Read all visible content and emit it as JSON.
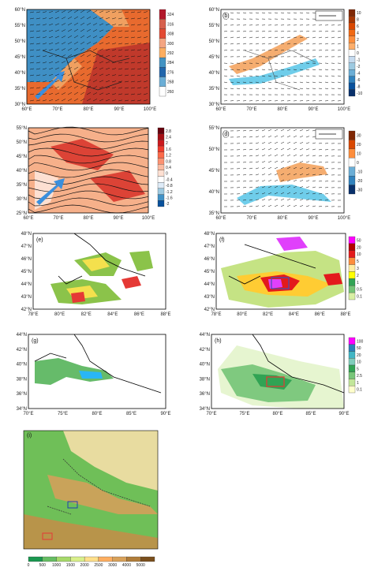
{
  "panels": {
    "a": {
      "label": "",
      "lat_ticks": [
        "60°N",
        "55°N",
        "50°N",
        "45°N",
        "40°N",
        "35°N",
        "30°N"
      ],
      "lon_ticks": [
        "60°E",
        "70°E",
        "80°E",
        "90°E",
        "100°E"
      ],
      "colorbar": [
        "324",
        "316",
        "308",
        "300",
        "292",
        "284",
        "276",
        "268",
        "260"
      ],
      "colorbar_colors": [
        "#b2182b",
        "#d6604d",
        "#e34a33",
        "#f4a582",
        "#fdae61",
        "#4393c3",
        "#2166ac",
        "#6baed6",
        "#ffffff"
      ]
    },
    "b": {
      "label": "(b)",
      "lat_ticks": [
        "60°N",
        "55°N",
        "50°N",
        "45°N",
        "40°N",
        "35°N",
        "30°N"
      ],
      "lon_ticks": [
        "60°E",
        "70°E",
        "80°E",
        "90°E",
        "100°E"
      ],
      "colorbar": [
        "10",
        "8",
        "6",
        "4",
        "2",
        "1",
        "0",
        "-1",
        "-2",
        "-4",
        "-6",
        "-8",
        "-10"
      ],
      "colorbar_colors": [
        "#7f2704",
        "#a63603",
        "#d94801",
        "#f16913",
        "#fd8d3c",
        "#fdae6b",
        "#ffffff",
        "#c6dbef",
        "#9ecae1",
        "#6baed6",
        "#3182bd",
        "#08519c",
        "#08306b"
      ]
    },
    "c": {
      "label": "",
      "lat_ticks": [
        "55°N",
        "50°N",
        "45°N",
        "40°N",
        "35°N",
        "30°N",
        "25°N"
      ],
      "lon_ticks": [
        "60°E",
        "70°E",
        "80°E",
        "90°E",
        "100°E"
      ],
      "colorbar": [
        "2.8",
        "2.4",
        "2",
        "1.6",
        "1.2",
        "0.8",
        "0.4",
        "0",
        "-0.4",
        "-0.8",
        "-1.2",
        "-1.6",
        "-2"
      ],
      "colorbar_colors": [
        "#67000d",
        "#a50f15",
        "#cb181d",
        "#ef3b2c",
        "#fb6a4a",
        "#fc9272",
        "#fcbba1",
        "#fee0d2",
        "#ffffff",
        "#deebf7",
        "#9ecae1",
        "#4292c6",
        "#08519c"
      ]
    },
    "d": {
      "label": "(d)",
      "lat_ticks": [
        "55°N",
        "50°N",
        "45°N",
        "40°N",
        "35°N"
      ],
      "lon_ticks": [
        "60°E",
        "70°E",
        "80°E",
        "90°E",
        "100°E"
      ],
      "colorbar": [
        "30",
        "20",
        "10",
        "0",
        "-10",
        "-20",
        "-30"
      ],
      "colorbar_colors": [
        "#7f2704",
        "#d94801",
        "#fd8d3c",
        "#ffffff",
        "#6baed6",
        "#3182bd",
        "#08306b"
      ]
    },
    "e": {
      "label": "(e)",
      "lat_ticks": [
        "48°N",
        "47°N",
        "46°N",
        "45°N",
        "44°N",
        "43°N",
        "42°N"
      ],
      "lon_ticks": [
        "78°E",
        "80°E",
        "82°E",
        "84°E",
        "86°E",
        "88°E"
      ]
    },
    "f": {
      "label": "(f)",
      "lat_ticks": [
        "48°N",
        "47°N",
        "46°N",
        "45°N",
        "44°N",
        "43°N",
        "42°N"
      ],
      "lon_ticks": [
        "78°E",
        "80°E",
        "82°E",
        "84°E",
        "86°E",
        "88°E"
      ],
      "colorbar": [
        "50",
        "20",
        "10",
        "5",
        "3",
        "2",
        "1",
        "0.5",
        "0.1"
      ],
      "colorbar_colors": [
        "#ff00ff",
        "#b30000",
        "#e31a1c",
        "#fd8d3c",
        "#ffeda0",
        "#ffff00",
        "#31a354",
        "#74c476",
        "#d9f0a3"
      ]
    },
    "g": {
      "label": "(g)",
      "lat_ticks": [
        "44°N",
        "42°N",
        "40°N",
        "38°N",
        "36°N",
        "34°N"
      ],
      "lon_ticks": [
        "70°E",
        "75°E",
        "80°E",
        "85°E",
        "90°E"
      ]
    },
    "h": {
      "label": "(h)",
      "lat_ticks": [
        "44°N",
        "42°N",
        "40°N",
        "38°N",
        "36°N",
        "34°N"
      ],
      "lon_ticks": [
        "70°E",
        "75°E",
        "80°E",
        "85°E",
        "90°E"
      ],
      "colorbar": [
        "100",
        "50",
        "20",
        "10",
        "5",
        "2.5",
        "1",
        "0.1"
      ],
      "colorbar_colors": [
        "#ff00ff",
        "#2c7fb8",
        "#41b6c4",
        "#7fcdbb",
        "#31a354",
        "#78c679",
        "#c2e699",
        "#ffffcc"
      ]
    },
    "i": {
      "label": "(i)",
      "colorbar": [
        "0",
        "500",
        "1000",
        "1500",
        "2000",
        "2500",
        "3000",
        "4000",
        "5000"
      ],
      "colorbar_colors": [
        "#1a9850",
        "#66bd63",
        "#a6d96a",
        "#d9ef8b",
        "#fee08b",
        "#fdae61",
        "#d8a15a",
        "#b07d3a",
        "#7a4f1d"
      ]
    }
  }
}
